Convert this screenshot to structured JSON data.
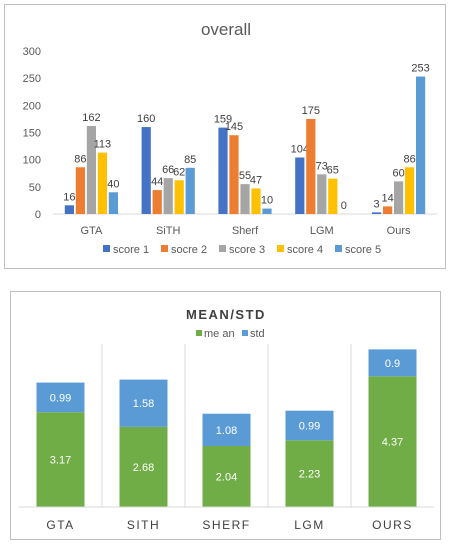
{
  "chart_data": [
    {
      "type": "bar",
      "title": "overall",
      "categories": [
        "GTA",
        "SiTH",
        "Sherf",
        "LGM",
        "Ours"
      ],
      "series": [
        {
          "name": "score 1",
          "color": "#4472c4",
          "values": [
            16,
            160,
            159,
            104,
            3
          ]
        },
        {
          "name": "socre 2",
          "color": "#ed7d31",
          "values": [
            86,
            44,
            145,
            175,
            14
          ]
        },
        {
          "name": "score 3",
          "color": "#a5a5a5",
          "values": [
            162,
            66,
            55,
            73,
            60
          ]
        },
        {
          "name": "score 4",
          "color": "#ffc000",
          "values": [
            113,
            62,
            47,
            65,
            86
          ]
        },
        {
          "name": "score 5",
          "color": "#5b9bd5",
          "values": [
            40,
            85,
            10,
            0,
            253
          ]
        }
      ],
      "yticks": [
        0,
        50,
        100,
        150,
        200,
        250,
        300
      ],
      "ylim": [
        0,
        300
      ],
      "grid": false,
      "legend_position": "bottom"
    },
    {
      "type": "bar",
      "stacked": true,
      "title": "MEAN/STD",
      "categories": [
        "GTA",
        "SITH",
        "SHERF",
        "LGM",
        "OURS"
      ],
      "series": [
        {
          "name": "mean",
          "color": "#70ad47",
          "values": [
            3.17,
            2.68,
            2.04,
            2.23,
            4.37
          ]
        },
        {
          "name": "std",
          "color": "#5b9bd5",
          "values": [
            0.99,
            1.58,
            1.08,
            0.99,
            0.9
          ]
        }
      ],
      "legend_labels": [
        "me an",
        "std"
      ],
      "legend_position": "top"
    }
  ]
}
